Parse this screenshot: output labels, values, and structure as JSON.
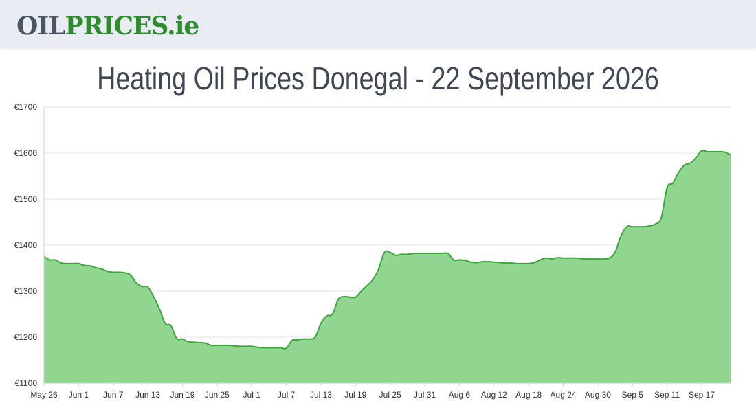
{
  "header": {
    "logo_oil": "OIL",
    "logo_prices": "PRICES",
    "logo_ie": ".ie"
  },
  "page": {
    "title": "Heating Oil Prices Donegal - 22 September 2026"
  },
  "colors": {
    "line": "#3aa63a",
    "fill": "#90d690",
    "grid": "#e6e6e6",
    "axis": "#cccccc"
  },
  "chart_data": {
    "type": "area",
    "title": "",
    "xlabel": "",
    "ylabel": "",
    "ylim": [
      1100,
      1700
    ],
    "y_ticks": [
      1100,
      1200,
      1300,
      1400,
      1500,
      1600,
      1700
    ],
    "y_tick_labels": [
      "€1100",
      "€1200",
      "€1300",
      "€1400",
      "€1500",
      "€1600",
      "€1700"
    ],
    "x_ticks": [
      "2026-05-26",
      "2026-06-01",
      "2026-06-07",
      "2026-06-13",
      "2026-06-19",
      "2026-06-25",
      "2026-07-01",
      "2026-07-07",
      "2026-07-13",
      "2026-07-19",
      "2026-07-25",
      "2026-07-31",
      "2026-08-06",
      "2026-08-12",
      "2026-08-18",
      "2026-08-24",
      "2026-08-30",
      "2026-09-05",
      "2026-09-11",
      "2026-09-17"
    ],
    "x_tick_labels": [
      "May 26",
      "Jun 1",
      "Jun 7",
      "Jun 13",
      "Jun 19",
      "Jun 25",
      "Jul 1",
      "Jul 7",
      "Jul 13",
      "Jul 19",
      "Jul 25",
      "Jul 31",
      "Aug 6",
      "Aug 12",
      "Aug 18",
      "Aug 24",
      "Aug 30",
      "Sep 5",
      "Sep 11",
      "Sep 17"
    ],
    "grid": true,
    "legend": "none",
    "series": [
      {
        "x": [
          "2026-05-26",
          "2026-05-27",
          "2026-05-28",
          "2026-05-29",
          "2026-05-30",
          "2026-05-31",
          "2026-06-01",
          "2026-06-02",
          "2026-06-03",
          "2026-06-04",
          "2026-06-05",
          "2026-06-06",
          "2026-06-07",
          "2026-06-08",
          "2026-06-09",
          "2026-06-10",
          "2026-06-11",
          "2026-06-12",
          "2026-06-13",
          "2026-06-14",
          "2026-06-15",
          "2026-06-16",
          "2026-06-17",
          "2026-06-18",
          "2026-06-19",
          "2026-06-20",
          "2026-06-21",
          "2026-06-22",
          "2026-06-23",
          "2026-06-24",
          "2026-06-25",
          "2026-06-26",
          "2026-06-27",
          "2026-06-28",
          "2026-06-29",
          "2026-06-30",
          "2026-07-01",
          "2026-07-02",
          "2026-07-03",
          "2026-07-04",
          "2026-07-05",
          "2026-07-06",
          "2026-07-07",
          "2026-07-08",
          "2026-07-09",
          "2026-07-10",
          "2026-07-11",
          "2026-07-12",
          "2026-07-13",
          "2026-07-14",
          "2026-07-15",
          "2026-07-16",
          "2026-07-17",
          "2026-07-18",
          "2026-07-19",
          "2026-07-20",
          "2026-07-21",
          "2026-07-22",
          "2026-07-23",
          "2026-07-24",
          "2026-07-25",
          "2026-07-26",
          "2026-07-27",
          "2026-07-28",
          "2026-07-29",
          "2026-07-30",
          "2026-07-31",
          "2026-08-01",
          "2026-08-02",
          "2026-08-03",
          "2026-08-04",
          "2026-08-05",
          "2026-08-06",
          "2026-08-07",
          "2026-08-08",
          "2026-08-09",
          "2026-08-10",
          "2026-08-11",
          "2026-08-12",
          "2026-08-13",
          "2026-08-14",
          "2026-08-15",
          "2026-08-16",
          "2026-08-17",
          "2026-08-18",
          "2026-08-19",
          "2026-08-20",
          "2026-08-21",
          "2026-08-22",
          "2026-08-23",
          "2026-08-24",
          "2026-08-25",
          "2026-08-26",
          "2026-08-27",
          "2026-08-28",
          "2026-08-29",
          "2026-08-30",
          "2026-08-31",
          "2026-09-01",
          "2026-09-02",
          "2026-09-03",
          "2026-09-04",
          "2026-09-05",
          "2026-09-06",
          "2026-09-07",
          "2026-09-08",
          "2026-09-09",
          "2026-09-10",
          "2026-09-11",
          "2026-09-12",
          "2026-09-13",
          "2026-09-14",
          "2026-09-15",
          "2026-09-16",
          "2026-09-17",
          "2026-09-18",
          "2026-09-19",
          "2026-09-20",
          "2026-09-21",
          "2026-09-22"
        ],
        "values": [
          1375,
          1368,
          1368,
          1361,
          1360,
          1360,
          1360,
          1356,
          1355,
          1351,
          1348,
          1343,
          1341,
          1341,
          1340,
          1335,
          1318,
          1310,
          1309,
          1288,
          1262,
          1230,
          1225,
          1197,
          1196,
          1190,
          1189,
          1188,
          1187,
          1182,
          1182,
          1182,
          1182,
          1181,
          1180,
          1180,
          1180,
          1178,
          1177,
          1177,
          1177,
          1177,
          1176,
          1193,
          1194,
          1196,
          1196,
          1200,
          1230,
          1246,
          1250,
          1282,
          1288,
          1287,
          1287,
          1300,
          1312,
          1325,
          1348,
          1384,
          1384,
          1378,
          1380,
          1380,
          1382,
          1382,
          1382,
          1382,
          1382,
          1382,
          1382,
          1368,
          1368,
          1367,
          1363,
          1362,
          1364,
          1364,
          1363,
          1362,
          1361,
          1361,
          1360,
          1360,
          1360,
          1362,
          1368,
          1372,
          1370,
          1373,
          1372,
          1372,
          1372,
          1371,
          1370,
          1370,
          1370,
          1370,
          1372,
          1385,
          1420,
          1440,
          1440,
          1440,
          1440,
          1442,
          1446,
          1460,
          1525,
          1535,
          1558,
          1574,
          1578,
          1590,
          1605,
          1603,
          1603,
          1603,
          1602,
          1596
        ]
      }
    ]
  }
}
